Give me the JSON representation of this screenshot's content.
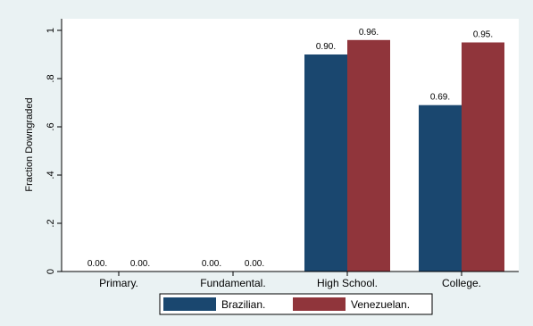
{
  "chart_data": {
    "type": "bar",
    "categories": [
      "Primary.",
      "Fundamental.",
      "High School.",
      "College."
    ],
    "series": [
      {
        "name": "Brazilian.",
        "values": [
          0.0,
          0.0,
          0.9,
          0.69
        ],
        "color": "#1a476f"
      },
      {
        "name": "Venezuelan.",
        "values": [
          0.0,
          0.0,
          0.96,
          0.95
        ],
        "color": "#90353b"
      }
    ],
    "data_labels": [
      [
        "0.00.",
        "0.00.",
        "0.90.",
        "0.69."
      ],
      [
        "0.00.",
        "0.00.",
        "0.96.",
        "0.95."
      ]
    ],
    "title": "",
    "xlabel": "",
    "ylabel": "Fraction Downgraded",
    "ylim": [
      0,
      1
    ],
    "yticks": [
      0,
      0.2,
      0.4,
      0.6,
      0.8,
      1
    ],
    "ytick_labels": [
      "0",
      ".2",
      ".4",
      ".6",
      ".8",
      "1"
    ],
    "grid": false,
    "legend_position": "bottom",
    "colors": {
      "outer_background": "#eaf2f3",
      "plot_background": "#ffffff",
      "axis": "#000000"
    }
  }
}
